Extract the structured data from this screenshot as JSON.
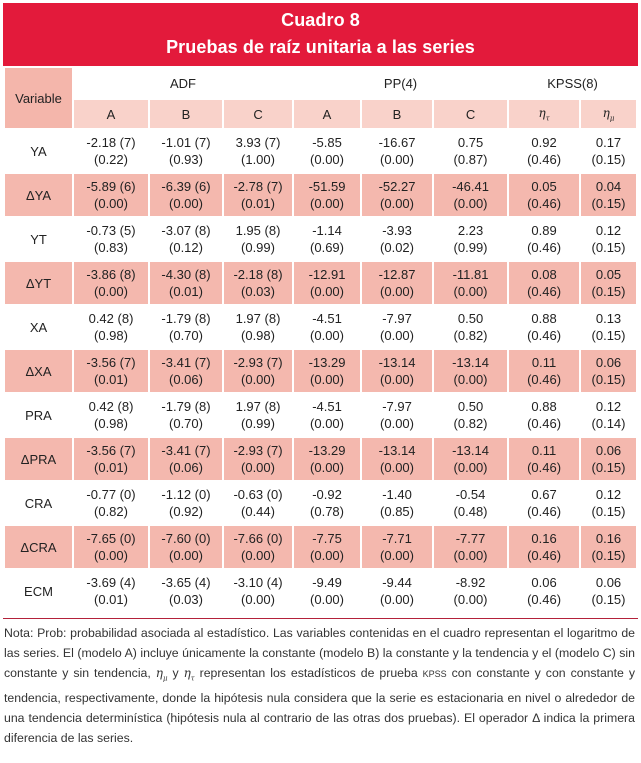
{
  "title": {
    "line1": "Cuadro 8",
    "line2": "Pruebas de raíz unitaria a las series"
  },
  "header": {
    "variable": "Variable",
    "groups": [
      "ADF",
      "PP(4)",
      "KPSS(8)"
    ],
    "sub": [
      "A",
      "B",
      "C",
      "A",
      "B",
      "C"
    ],
    "eta_symbol": "η",
    "eta_sub": [
      "τ",
      "μ"
    ]
  },
  "rows": [
    {
      "name": "YA",
      "shaded": false,
      "stats": [
        "-2.18 (7)",
        "-1.01 (7)",
        "3.93 (7)",
        "-5.85",
        "-16.67",
        "0.75",
        "0.92",
        "0.17"
      ],
      "probs": [
        "(0.22)",
        "(0.93)",
        "(1.00)",
        "(0.00)",
        "(0.00)",
        "(0.87)",
        "(0.46)",
        "(0.15)"
      ]
    },
    {
      "name": "ΔYA",
      "shaded": true,
      "stats": [
        "-5.89 (6)",
        "-6.39 (6)",
        "-2.78 (7)",
        "-51.59",
        "-52.27",
        "-46.41",
        "0.05",
        "0.04"
      ],
      "probs": [
        "(0.00)",
        "(0.00)",
        "(0.01)",
        "(0.00)",
        "(0.00)",
        "(0.00)",
        "(0.46)",
        "(0.15)"
      ]
    },
    {
      "name": "YT",
      "shaded": false,
      "stats": [
        "-0.73 (5)",
        "-3.07 (8)",
        "1.95 (8)",
        "-1.14",
        "-3.93",
        "2.23",
        "0.89",
        "0.12"
      ],
      "probs": [
        "(0.83)",
        "(0.12)",
        "(0.99)",
        "(0.69)",
        "(0.02)",
        "(0.99)",
        "(0.46)",
        "(0.15)"
      ]
    },
    {
      "name": "ΔYT",
      "shaded": true,
      "stats": [
        "-3.86 (8)",
        "-4.30 (8)",
        "-2.18 (8)",
        "-12.91",
        "-12.87",
        "-11.81",
        "0.08",
        "0.05"
      ],
      "probs": [
        "(0.00)",
        "(0.01)",
        "(0.03)",
        "(0.00)",
        "(0.00)",
        "(0.00)",
        "(0.46)",
        "(0.15)"
      ]
    },
    {
      "name": "XA",
      "shaded": false,
      "stats": [
        "0.42 (8)",
        "-1.79 (8)",
        "1.97 (8)",
        "-4.51",
        "-7.97",
        "0.50",
        "0.88",
        "0.13"
      ],
      "probs": [
        "(0.98)",
        "(0.70)",
        "(0.98)",
        "(0.00)",
        "(0.00)",
        "(0.82)",
        "(0.46)",
        "(0.15)"
      ]
    },
    {
      "name": "ΔXA",
      "shaded": true,
      "stats": [
        "-3.56 (7)",
        "-3.41 (7)",
        "-2.93 (7)",
        "-13.29",
        "-13.14",
        "-13.14",
        "0.11",
        "0.06"
      ],
      "probs": [
        "(0.01)",
        "(0.06)",
        "(0.00)",
        "(0.00)",
        "(0.00)",
        "(0.00)",
        "(0.46)",
        "(0.15)"
      ]
    },
    {
      "name": "PRA",
      "shaded": false,
      "stats": [
        "0.42 (8)",
        "-1.79 (8)",
        "1.97 (8)",
        "-4.51",
        "-7.97",
        "0.50",
        "0.88",
        "0.12"
      ],
      "probs": [
        "(0.98)",
        "(0.70)",
        "(0.99)",
        "(0.00)",
        "(0.00)",
        "(0.82)",
        "(0.46)",
        "(0.14)"
      ]
    },
    {
      "name": "ΔPRA",
      "shaded": true,
      "stats": [
        "-3.56 (7)",
        "-3.41 (7)",
        "-2.93 (7)",
        "-13.29",
        "-13.14",
        "-13.14",
        "0.11",
        "0.06"
      ],
      "probs": [
        "(0.01)",
        "(0.06)",
        "(0.00)",
        "(0.00)",
        "(0.00)",
        "(0.00)",
        "(0.46)",
        "(0.15)"
      ]
    },
    {
      "name": "CRA",
      "shaded": false,
      "stats": [
        "-0.77 (0)",
        "-1.12 (0)",
        "-0.63 (0)",
        "-0.92",
        "-1.40",
        "-0.54",
        "0.67",
        "0.12"
      ],
      "probs": [
        "(0.82)",
        "(0.92)",
        "(0.44)",
        "(0.78)",
        "(0.85)",
        "(0.48)",
        "(0.46)",
        "(0.15)"
      ]
    },
    {
      "name": "ΔCRA",
      "shaded": true,
      "stats": [
        "-7.65 (0)",
        "-7.60 (0)",
        "-7.66 (0)",
        "-7.75",
        "-7.71",
        "-7.77",
        "0.16",
        "0.16"
      ],
      "probs": [
        "(0.00)",
        "(0.00)",
        "(0.00)",
        "(0.00)",
        "(0.00)",
        "(0.00)",
        "(0.46)",
        "(0.15)"
      ]
    },
    {
      "name": "ECM",
      "shaded": false,
      "stats": [
        "-3.69 (4)",
        "-3.65 (4)",
        "-3.10 (4)",
        "-9.49",
        "-9.44",
        "-8.92",
        "0.06",
        "0.06"
      ],
      "probs": [
        "(0.01)",
        "(0.03)",
        "(0.00)",
        "(0.00)",
        "(0.00)",
        "(0.00)",
        "(0.46)",
        "(0.15)"
      ]
    }
  ],
  "note": {
    "p1": "Nota: Prob: probabilidad asociada al estadístico. Las variables contenidas en el cuadro representan el logaritmo de las series. El (modelo A) incluye únicamente la constante (modelo B) la constante y la tendencia y el (modelo C) sin constante y sin tendencia, ",
    "eta_mu": "η",
    "mu": "μ",
    "y": " y ",
    "eta_tau": "η",
    "tau": "τ",
    "p2": " representan los estadísticos de prueba ",
    "kpss": "KPSS",
    "p3": " con constante y con constante y tendencia, respectivamente, donde la hipótesis nula considera que la serie es estacionaria en nivel o alrededor de una tendencia determinística (hipótesis nula al contrario de las otras dos pruebas). El operador Δ indica la primera diferencia de las series."
  }
}
